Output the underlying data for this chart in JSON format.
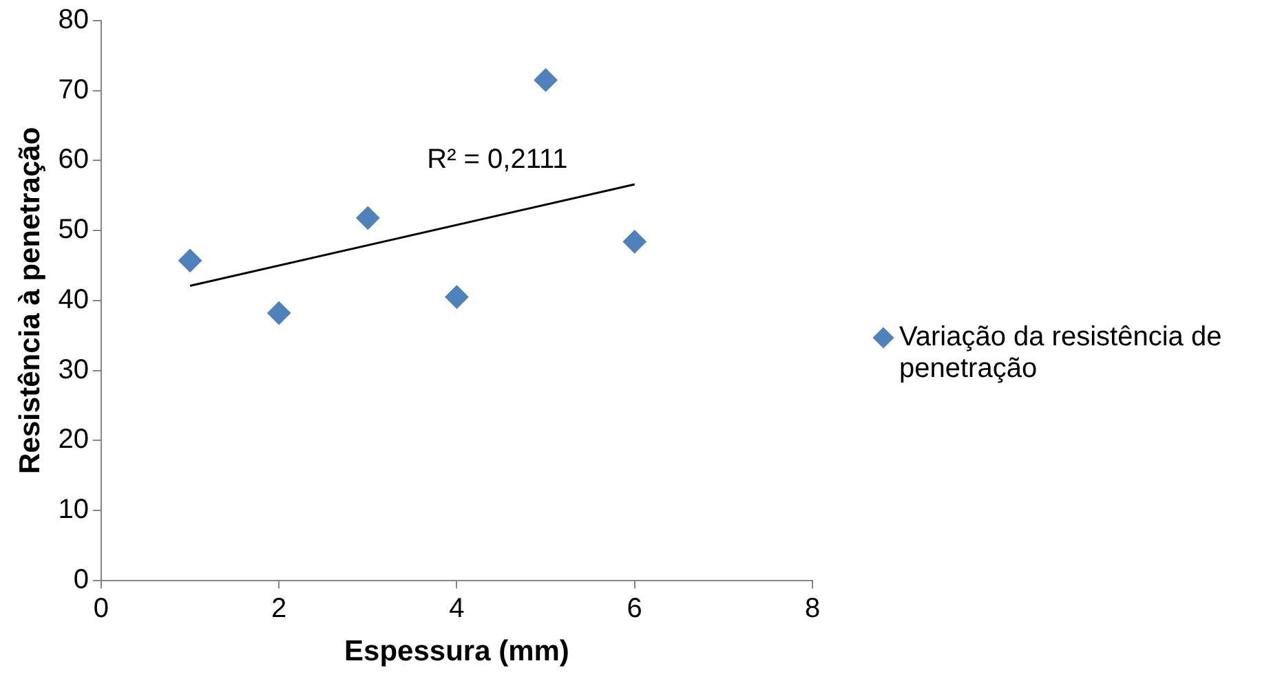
{
  "chart_data": {
    "type": "scatter",
    "xlabel": "Espessura (mm)",
    "ylabel": "Resistência à penetração",
    "xlim": [
      0,
      8
    ],
    "xticks": [
      0,
      2,
      4,
      6,
      8
    ],
    "ylim": [
      0,
      80
    ],
    "yticks": [
      0,
      10,
      20,
      30,
      40,
      50,
      60,
      70,
      80
    ],
    "grid": false,
    "legend": "right",
    "series": [
      {
        "name": "Variação da resistência de penetração",
        "color": "#4f81bd",
        "marker": "diamond",
        "x": [
          1,
          2,
          3,
          4,
          5,
          6
        ],
        "values": [
          45.7,
          38.2,
          51.8,
          40.5,
          71.5,
          48.4
        ]
      },
      {
        "type": "line",
        "color": "#000000",
        "marker": "none",
        "x": [
          1,
          6
        ],
        "values": [
          42.1,
          56.6
        ]
      }
    ],
    "annotations": [
      "R² = 0,2111"
    ]
  }
}
